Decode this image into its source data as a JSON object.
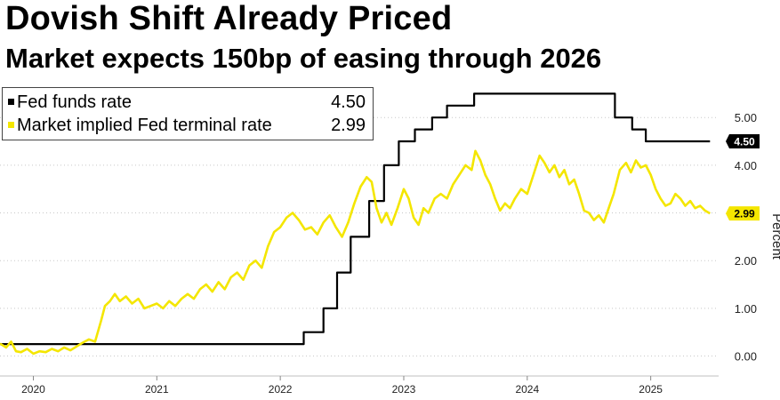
{
  "header": {
    "title": "Dovish Shift Already Priced",
    "subtitle": "Market expects 150bp of easing through 2026"
  },
  "legend": {
    "items": [
      {
        "label": "Fed funds rate",
        "value": "4.50",
        "color": "#000000"
      },
      {
        "label": "Market implied Fed terminal rate",
        "value": "2.99",
        "color": "#f4e600"
      }
    ]
  },
  "chart_data": {
    "type": "line",
    "title": "Dovish Shift Already Priced",
    "subtitle": "Market expects 150bp of easing through 2026",
    "xlabel": "",
    "ylabel": "Percent",
    "xlim": [
      2019.73,
      2025.55
    ],
    "ylim": [
      -0.4,
      5.6
    ],
    "yticks": [
      "0.00",
      "1.00",
      "2.00",
      "3.00",
      "4.00",
      "5.00"
    ],
    "xticks": [
      "2020",
      "2021",
      "2022",
      "2023",
      "2024",
      "2025"
    ],
    "xtick_values": [
      2020,
      2021,
      2022,
      2023,
      2024,
      2025
    ],
    "grid": true,
    "legend_position": "top-left",
    "end_labels": [
      {
        "series": "Fed funds rate",
        "text": "4.50"
      },
      {
        "series": "Market implied Fed terminal rate",
        "text": "2.99"
      }
    ],
    "series": [
      {
        "name": "Fed funds rate",
        "color": "#000000",
        "step": true,
        "points": [
          [
            2019.73,
            0.25
          ],
          [
            2022.19,
            0.25
          ],
          [
            2022.19,
            0.5
          ],
          [
            2022.35,
            0.5
          ],
          [
            2022.35,
            1.0
          ],
          [
            2022.46,
            1.0
          ],
          [
            2022.46,
            1.75
          ],
          [
            2022.57,
            1.75
          ],
          [
            2022.57,
            2.5
          ],
          [
            2022.72,
            2.5
          ],
          [
            2022.72,
            3.25
          ],
          [
            2022.84,
            3.25
          ],
          [
            2022.84,
            4.0
          ],
          [
            2022.96,
            4.0
          ],
          [
            2022.96,
            4.5
          ],
          [
            2023.09,
            4.5
          ],
          [
            2023.09,
            4.75
          ],
          [
            2023.23,
            4.75
          ],
          [
            2023.23,
            5.0
          ],
          [
            2023.35,
            5.0
          ],
          [
            2023.35,
            5.25
          ],
          [
            2023.57,
            5.25
          ],
          [
            2023.57,
            5.5
          ],
          [
            2024.71,
            5.5
          ],
          [
            2024.71,
            5.0
          ],
          [
            2024.85,
            5.0
          ],
          [
            2024.85,
            4.75
          ],
          [
            2024.96,
            4.75
          ],
          [
            2024.96,
            4.5
          ],
          [
            2025.48,
            4.5
          ]
        ]
      },
      {
        "name": "Market implied Fed terminal rate",
        "color": "#f4e600",
        "step": false,
        "points": [
          [
            2019.73,
            0.26
          ],
          [
            2019.78,
            0.18
          ],
          [
            2019.82,
            0.3
          ],
          [
            2019.86,
            0.1
          ],
          [
            2019.9,
            0.08
          ],
          [
            2019.95,
            0.15
          ],
          [
            2020.0,
            0.05
          ],
          [
            2020.05,
            0.1
          ],
          [
            2020.1,
            0.08
          ],
          [
            2020.15,
            0.15
          ],
          [
            2020.2,
            0.1
          ],
          [
            2020.25,
            0.18
          ],
          [
            2020.3,
            0.12
          ],
          [
            2020.35,
            0.2
          ],
          [
            2020.4,
            0.28
          ],
          [
            2020.45,
            0.35
          ],
          [
            2020.5,
            0.3
          ],
          [
            2020.55,
            0.75
          ],
          [
            2020.58,
            1.05
          ],
          [
            2020.62,
            1.15
          ],
          [
            2020.66,
            1.3
          ],
          [
            2020.7,
            1.15
          ],
          [
            2020.75,
            1.25
          ],
          [
            2020.8,
            1.1
          ],
          [
            2020.85,
            1.2
          ],
          [
            2020.9,
            1.0
          ],
          [
            2020.95,
            1.05
          ],
          [
            2021.0,
            1.1
          ],
          [
            2021.05,
            1.0
          ],
          [
            2021.1,
            1.15
          ],
          [
            2021.15,
            1.05
          ],
          [
            2021.2,
            1.2
          ],
          [
            2021.25,
            1.3
          ],
          [
            2021.3,
            1.2
          ],
          [
            2021.35,
            1.4
          ],
          [
            2021.4,
            1.5
          ],
          [
            2021.45,
            1.35
          ],
          [
            2021.5,
            1.55
          ],
          [
            2021.55,
            1.4
          ],
          [
            2021.6,
            1.65
          ],
          [
            2021.65,
            1.75
          ],
          [
            2021.7,
            1.6
          ],
          [
            2021.75,
            1.9
          ],
          [
            2021.8,
            2.0
          ],
          [
            2021.85,
            1.85
          ],
          [
            2021.9,
            2.3
          ],
          [
            2021.95,
            2.6
          ],
          [
            2022.0,
            2.7
          ],
          [
            2022.05,
            2.9
          ],
          [
            2022.1,
            3.0
          ],
          [
            2022.15,
            2.85
          ],
          [
            2022.2,
            2.65
          ],
          [
            2022.25,
            2.7
          ],
          [
            2022.3,
            2.55
          ],
          [
            2022.35,
            2.8
          ],
          [
            2022.4,
            2.95
          ],
          [
            2022.45,
            2.7
          ],
          [
            2022.5,
            2.5
          ],
          [
            2022.55,
            2.8
          ],
          [
            2022.6,
            3.2
          ],
          [
            2022.65,
            3.55
          ],
          [
            2022.7,
            3.75
          ],
          [
            2022.74,
            3.65
          ],
          [
            2022.78,
            3.1
          ],
          [
            2022.82,
            2.8
          ],
          [
            2022.86,
            3.0
          ],
          [
            2022.9,
            2.75
          ],
          [
            2022.95,
            3.1
          ],
          [
            2023.0,
            3.5
          ],
          [
            2023.04,
            3.3
          ],
          [
            2023.08,
            2.9
          ],
          [
            2023.12,
            2.75
          ],
          [
            2023.16,
            3.1
          ],
          [
            2023.2,
            3.0
          ],
          [
            2023.25,
            3.3
          ],
          [
            2023.3,
            3.4
          ],
          [
            2023.35,
            3.3
          ],
          [
            2023.4,
            3.6
          ],
          [
            2023.45,
            3.8
          ],
          [
            2023.5,
            4.0
          ],
          [
            2023.55,
            3.9
          ],
          [
            2023.58,
            4.3
          ],
          [
            2023.62,
            4.1
          ],
          [
            2023.66,
            3.8
          ],
          [
            2023.7,
            3.6
          ],
          [
            2023.74,
            3.3
          ],
          [
            2023.78,
            3.05
          ],
          [
            2023.82,
            3.2
          ],
          [
            2023.86,
            3.1
          ],
          [
            2023.9,
            3.3
          ],
          [
            2023.95,
            3.5
          ],
          [
            2024.0,
            3.4
          ],
          [
            2024.05,
            3.8
          ],
          [
            2024.1,
            4.2
          ],
          [
            2024.14,
            4.05
          ],
          [
            2024.18,
            3.85
          ],
          [
            2024.22,
            4.0
          ],
          [
            2024.26,
            3.75
          ],
          [
            2024.3,
            3.9
          ],
          [
            2024.34,
            3.6
          ],
          [
            2024.38,
            3.7
          ],
          [
            2024.42,
            3.4
          ],
          [
            2024.46,
            3.05
          ],
          [
            2024.5,
            3.0
          ],
          [
            2024.54,
            2.85
          ],
          [
            2024.58,
            2.95
          ],
          [
            2024.62,
            2.8
          ],
          [
            2024.66,
            3.1
          ],
          [
            2024.7,
            3.4
          ],
          [
            2024.75,
            3.9
          ],
          [
            2024.8,
            4.05
          ],
          [
            2024.84,
            3.85
          ],
          [
            2024.88,
            4.1
          ],
          [
            2024.92,
            3.95
          ],
          [
            2024.96,
            4.0
          ],
          [
            2025.0,
            3.8
          ],
          [
            2025.04,
            3.5
          ],
          [
            2025.08,
            3.3
          ],
          [
            2025.12,
            3.15
          ],
          [
            2025.16,
            3.2
          ],
          [
            2025.2,
            3.4
          ],
          [
            2025.24,
            3.3
          ],
          [
            2025.28,
            3.15
          ],
          [
            2025.32,
            3.25
          ],
          [
            2025.36,
            3.1
          ],
          [
            2025.4,
            3.15
          ],
          [
            2025.44,
            3.05
          ],
          [
            2025.48,
            2.99
          ]
        ]
      }
    ]
  }
}
